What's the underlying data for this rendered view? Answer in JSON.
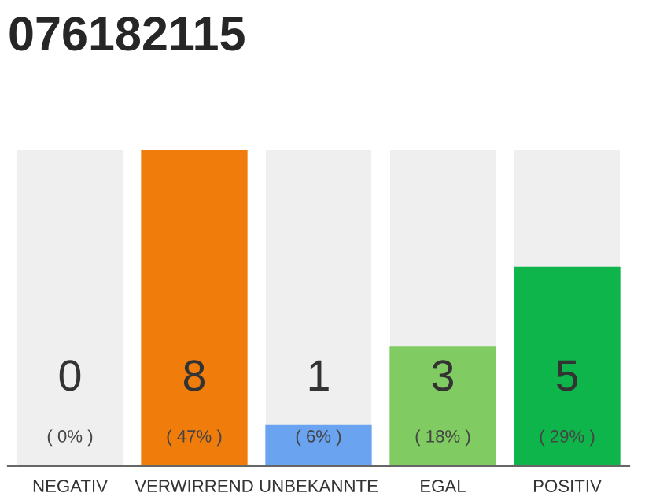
{
  "chart_data": {
    "type": "bar",
    "title": "076182115",
    "categories": [
      "NEGATIV",
      "VERWIRREND",
      "UNBEKANNTE",
      "EGAL",
      "POSITIV"
    ],
    "values": [
      0,
      8,
      1,
      3,
      5
    ],
    "colors": [
      "#555555",
      "#f07c0c",
      "#6aa3f0",
      "#80cc62",
      "#0db54a"
    ],
    "ylim": [
      0,
      8
    ],
    "grid": false,
    "legend": false,
    "tick_labels": "x",
    "value_labels": [
      "0\n( 0% )",
      "8\n( 47% )",
      "1\n( 6% )",
      "3\n( 18% )",
      "5\n( 29% )"
    ]
  }
}
